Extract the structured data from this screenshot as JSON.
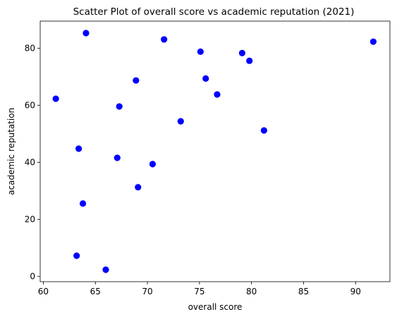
{
  "chart_data": {
    "type": "scatter",
    "title": "Scatter Plot of overall score vs academic reputation (2021)",
    "xlabel": "overall score",
    "ylabel": "academic reputation",
    "xlim": [
      59.7,
      93.3
    ],
    "ylim": [
      -1.8,
      89.5
    ],
    "xticks": [
      60,
      65,
      70,
      75,
      80,
      85,
      90
    ],
    "yticks": [
      0,
      20,
      40,
      60,
      80
    ],
    "grid": false,
    "marker_color": "#0000ff",
    "points": [
      {
        "x": 61.2,
        "y": 62.3
      },
      {
        "x": 63.2,
        "y": 7.3
      },
      {
        "x": 63.4,
        "y": 44.8
      },
      {
        "x": 63.8,
        "y": 25.6
      },
      {
        "x": 64.1,
        "y": 85.3
      },
      {
        "x": 66.0,
        "y": 2.4
      },
      {
        "x": 67.1,
        "y": 41.6
      },
      {
        "x": 67.3,
        "y": 59.6
      },
      {
        "x": 68.9,
        "y": 68.7
      },
      {
        "x": 69.1,
        "y": 31.3
      },
      {
        "x": 70.5,
        "y": 39.4
      },
      {
        "x": 71.6,
        "y": 83.1
      },
      {
        "x": 73.2,
        "y": 54.4
      },
      {
        "x": 75.1,
        "y": 78.8
      },
      {
        "x": 75.6,
        "y": 69.4
      },
      {
        "x": 76.7,
        "y": 63.8
      },
      {
        "x": 79.1,
        "y": 78.3
      },
      {
        "x": 79.8,
        "y": 75.6
      },
      {
        "x": 81.2,
        "y": 51.2
      },
      {
        "x": 91.7,
        "y": 82.3
      }
    ]
  }
}
